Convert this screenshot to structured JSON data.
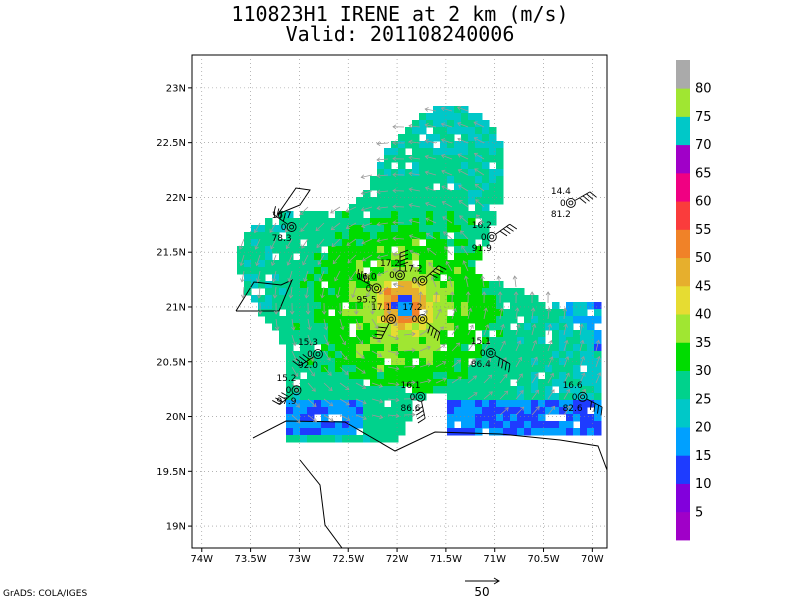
{
  "title_line1": "110823H1 IRENE at 2 km (m/s)",
  "title_line2": "Valid: 201108240006",
  "credit": "GrADS: COLA/IGES",
  "reference_vector_label": "50",
  "chart_data": {
    "type": "heatmap",
    "title": "110823H1 IRENE at 2 km (m/s)",
    "subtitle": "Valid: 201108240006",
    "xlabel": "",
    "ylabel": "",
    "xlim": [
      -74.1,
      -69.85
    ],
    "ylim": [
      18.8,
      23.3
    ],
    "x_ticks": [
      {
        "value": -74.0,
        "label": "74W"
      },
      {
        "value": -73.5,
        "label": "73.5W"
      },
      {
        "value": -73.0,
        "label": "73W"
      },
      {
        "value": -72.5,
        "label": "72.5W"
      },
      {
        "value": -72.0,
        "label": "72W"
      },
      {
        "value": -71.5,
        "label": "71.5W"
      },
      {
        "value": -71.0,
        "label": "71W"
      },
      {
        "value": -70.5,
        "label": "70.5W"
      },
      {
        "value": -70.0,
        "label": "70W"
      }
    ],
    "y_ticks": [
      {
        "value": 19.0,
        "label": "19N"
      },
      {
        "value": 19.5,
        "label": "19.5N"
      },
      {
        "value": 20.0,
        "label": "20N"
      },
      {
        "value": 20.5,
        "label": "20.5N"
      },
      {
        "value": 21.0,
        "label": "21N"
      },
      {
        "value": 21.5,
        "label": "21.5N"
      },
      {
        "value": 22.0,
        "label": "22N"
      },
      {
        "value": 22.5,
        "label": "22.5N"
      },
      {
        "value": 23.0,
        "label": "23N"
      }
    ],
    "grid": true,
    "storm_center": {
      "lon": -71.97,
      "lat": 21.05
    },
    "colorbar": {
      "position": "right",
      "levels": [
        {
          "label": "",
          "color": "#a000c8"
        },
        {
          "label": "5",
          "color": "#8200dc"
        },
        {
          "label": "10",
          "color": "#1e3cff"
        },
        {
          "label": "15",
          "color": "#00a0ff"
        },
        {
          "label": "20",
          "color": "#00c8c8"
        },
        {
          "label": "25",
          "color": "#00d28c"
        },
        {
          "label": "30",
          "color": "#00dc00"
        },
        {
          "label": "35",
          "color": "#a0e632"
        },
        {
          "label": "40",
          "color": "#e6dc32"
        },
        {
          "label": "45",
          "color": "#e6af2d"
        },
        {
          "label": "50",
          "color": "#f08228"
        },
        {
          "label": "55",
          "color": "#fa3c3c"
        },
        {
          "label": "60",
          "color": "#f00082"
        },
        {
          "label": "65",
          "color": "#a000c8"
        },
        {
          "label": "70",
          "color": "#00c8c8"
        },
        {
          "label": "75",
          "color": "#a0e632"
        },
        {
          "label": "80",
          "color": "#aaaaaa"
        }
      ]
    },
    "stations": [
      {
        "lon": -73.08,
        "lat": 21.73,
        "top": "16.7",
        "mid": "0",
        "bottom": "78.3"
      },
      {
        "lon": -70.22,
        "lat": 21.95,
        "top": "14.4",
        "mid": "0",
        "bottom": "81.2"
      },
      {
        "lon": -71.03,
        "lat": 21.64,
        "top": "16.2",
        "mid": "0",
        "bottom": "91.9"
      },
      {
        "lon": -72.21,
        "lat": 21.17,
        "top": "16.0",
        "mid": "0",
        "bottom": "95.5"
      },
      {
        "lon": -71.97,
        "lat": 21.29,
        "top": "17.2",
        "mid": "0",
        "bottom": ""
      },
      {
        "lon": -71.74,
        "lat": 21.24,
        "top": "17.2",
        "mid": "0",
        "bottom": ""
      },
      {
        "lon": -72.06,
        "lat": 20.89,
        "top": "17.1",
        "mid": "0",
        "bottom": ""
      },
      {
        "lon": -71.74,
        "lat": 20.89,
        "top": "17.2",
        "mid": "0",
        "bottom": ""
      },
      {
        "lon": -72.81,
        "lat": 20.57,
        "top": "15.3",
        "mid": "0",
        "bottom": "92.0"
      },
      {
        "lon": -73.03,
        "lat": 20.24,
        "top": "15.2",
        "mid": "0",
        "bottom": "97.9"
      },
      {
        "lon": -71.04,
        "lat": 20.58,
        "top": "15.1",
        "mid": "0",
        "bottom": "86.4"
      },
      {
        "lon": -71.76,
        "lat": 20.18,
        "top": "16.1",
        "mid": "0",
        "bottom": "86.6"
      },
      {
        "lon": -70.1,
        "lat": 20.18,
        "top": "16.6",
        "mid": "0",
        "bottom": "82.6"
      }
    ]
  }
}
